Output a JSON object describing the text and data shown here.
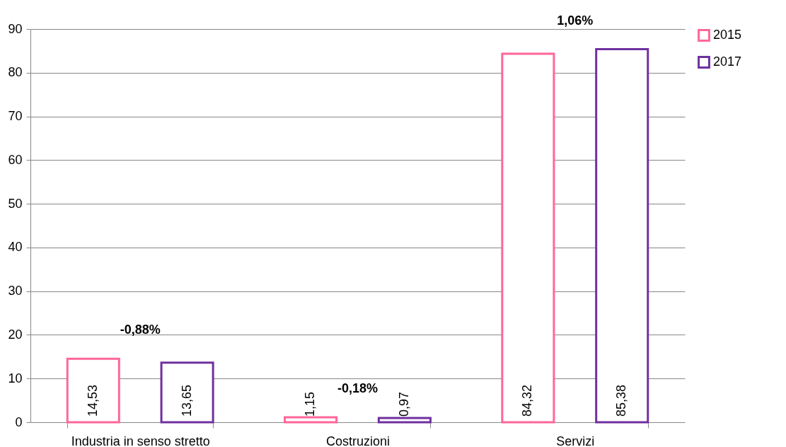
{
  "chart_data": {
    "type": "bar",
    "categories": [
      "Industria in senso stretto",
      "Costruzioni",
      "Servizi"
    ],
    "series": [
      {
        "name": "2015",
        "color": "#ff6699",
        "values": [
          14.53,
          1.15,
          84.32
        ],
        "value_labels": [
          "14,53",
          "1,15",
          "84,32"
        ]
      },
      {
        "name": "2017",
        "color": "#7030a0",
        "values": [
          13.65,
          0.97,
          85.38
        ],
        "value_labels": [
          "13,65",
          "0,97",
          "85,38"
        ]
      }
    ],
    "ylim": [
      0,
      90
    ],
    "yticks": [
      0,
      10,
      20,
      30,
      40,
      50,
      60,
      70,
      80,
      90
    ],
    "grid": "y",
    "legend": "right",
    "annotations": [
      "-0,88%",
      "-0,18%",
      "1,06%"
    ]
  }
}
